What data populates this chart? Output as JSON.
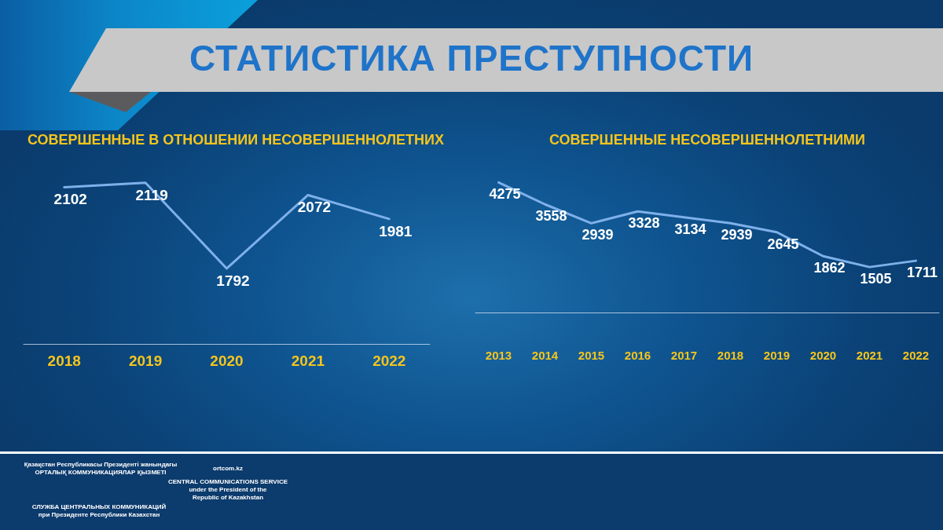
{
  "chart_data": [
    {
      "type": "line",
      "title": "СТАТИСТИКА ПРЕСТУПНОСТИ",
      "subtitle": "СОВЕРШЕННЫЕ В ОТНОШЕНИИ НЕСОВЕРШЕННОЛЕТНИХ",
      "categories": [
        "2018",
        "2019",
        "2020",
        "2021",
        "2022"
      ],
      "series": [
        {
          "color": "#7eb0ea",
          "values": [
            2102,
            2119,
            1792,
            2072,
            1981
          ]
        }
      ],
      "data_labels": true,
      "marker": "none",
      "tick_labels": "x",
      "annotations": [
        "Қазақстан Республикасы Президенті жанындағы\nОРТАЛЫҚ КОММУНИКАЦИЯЛАР ҚЫЗМЕТІ",
        "ortcom.kz",
        "CENTRAL COMMUNICATIONS SERVICE\nunder the President of the\nRepublic of Kazakhstan",
        "СЛУЖБА ЦЕНТРАЛЬНЫХ КОММУНИКАЦИЙ\nпри Президенте Республики Казахстан"
      ]
    },
    {
      "type": "line",
      "title": "СОВЕРШЕННЫЕ НЕСОВЕРШЕННОЛЕТНИМИ",
      "categories": [
        "2013",
        "2014",
        "2015",
        "2016",
        "2017",
        "2018",
        "2019",
        "2020",
        "2021",
        "2022"
      ],
      "series": [
        {
          "color": "#7eb0ea",
          "values": [
            4275,
            3558,
            2939,
            3328,
            3134,
            2939,
            2645,
            1862,
            1505,
            1711
          ]
        }
      ],
      "data_labels": true,
      "marker": "none",
      "tick_labels": "x"
    }
  ]
}
